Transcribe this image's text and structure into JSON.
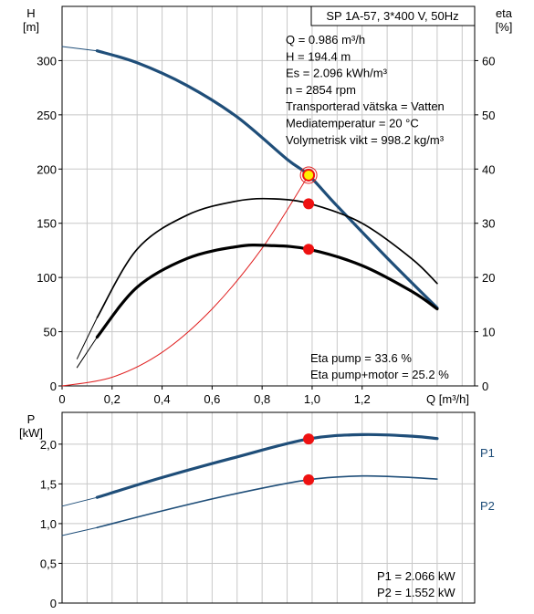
{
  "colors": {
    "curve_blue": "#1f4e79",
    "curve_black": "#000000",
    "system_red": "#e02020",
    "marker_red": "#ee1111",
    "op_marker_yellow": "#ffee00",
    "grid": "#c8c8c8"
  },
  "chart_data": [
    {
      "type": "line",
      "title": "SP 1A-57, 3*400 V, 50Hz",
      "xlabel": "Q [m³/h]",
      "ylabel": [
        "H",
        "[m]"
      ],
      "y2label": [
        "eta",
        "[%]"
      ],
      "xlim": [
        0,
        1.65
      ],
      "ylim": [
        0,
        350
      ],
      "y2lim": [
        0,
        70
      ],
      "x_ticks": [
        "0",
        "0,2",
        "0,4",
        "0,6",
        "0,8",
        "1,0",
        "1,2"
      ],
      "x_tick_values": [
        0,
        0.2,
        0.4,
        0.6,
        0.8,
        1.0,
        1.2
      ],
      "y_ticks": [
        "0",
        "50",
        "100",
        "150",
        "200",
        "250",
        "300"
      ],
      "y_tick_values": [
        0,
        50,
        100,
        150,
        200,
        250,
        300
      ],
      "y2_ticks": [
        "0",
        "10",
        "20",
        "30",
        "40",
        "50",
        "60"
      ],
      "y2_tick_values": [
        0,
        10,
        20,
        30,
        40,
        50,
        60
      ],
      "grid": true,
      "info_lines": [
        "Q = 0.986 m³/h",
        "H = 194.4 m",
        "Es = 2.096 kWh/m³",
        "n = 2854 rpm",
        "Transporterad vätska = Vatten",
        "Mediatemperatur = 20 °C",
        "Volymetrisk vikt = 998.2 kg/m³"
      ],
      "eta_lines": [
        "Eta pump = 33.6 %",
        "Eta pump+motor = 25.2 %"
      ],
      "series": [
        {
          "axis": "left",
          "style": "blue-thin",
          "x": [
            0,
            0.14
          ],
          "y": [
            313,
            309
          ]
        },
        {
          "axis": "left",
          "style": "blue-thick",
          "x": [
            0.14,
            0.3,
            0.5,
            0.7,
            0.9,
            0.986,
            1.1,
            1.3,
            1.5
          ],
          "y": [
            309,
            298,
            277,
            248,
            209,
            194.4,
            166,
            118,
            72
          ]
        },
        {
          "axis": "left",
          "style": "red-thin",
          "x": [
            0,
            0.2,
            0.4,
            0.6,
            0.8,
            0.986
          ],
          "y": [
            0,
            8,
            31,
            71,
            127,
            194.4
          ]
        },
        {
          "axis": "right",
          "style": "black-thin",
          "x": [
            0.06,
            0.14
          ],
          "y": [
            5,
            12.6
          ]
        },
        {
          "axis": "right",
          "style": "black-medium",
          "x": [
            0.14,
            0.3,
            0.5,
            0.7,
            0.85,
            1.0,
            1.2,
            1.4,
            1.5
          ],
          "y": [
            12.6,
            25.2,
            31.5,
            34.1,
            34.5,
            33.5,
            30,
            23.4,
            18.9
          ]
        },
        {
          "axis": "right",
          "style": "black-thin",
          "x": [
            0.06,
            0.14
          ],
          "y": [
            3.4,
            9
          ]
        },
        {
          "axis": "right",
          "style": "black-thick",
          "x": [
            0.14,
            0.3,
            0.5,
            0.7,
            0.83,
            0.986,
            1.2,
            1.4,
            1.5
          ],
          "y": [
            9,
            18.2,
            23.5,
            25.7,
            25.9,
            25.2,
            22.2,
            17.4,
            14.2
          ]
        }
      ],
      "markers": [
        {
          "axis": "left",
          "x": 0.986,
          "y": 194.4,
          "kind": "operating-point"
        },
        {
          "axis": "right",
          "x": 0.986,
          "y": 33.6,
          "kind": "point"
        },
        {
          "axis": "right",
          "x": 0.986,
          "y": 25.2,
          "kind": "point"
        }
      ]
    },
    {
      "type": "line",
      "ylabel": [
        "P",
        "[kW]"
      ],
      "xlim": [
        0,
        1.65
      ],
      "ylim": [
        0,
        2.4
      ],
      "y_ticks": [
        "0",
        "0,5",
        "1,0",
        "1,5",
        "2,0"
      ],
      "y_tick_values": [
        0,
        0.5,
        1.0,
        1.5,
        2.0
      ],
      "grid": true,
      "power_lines": [
        "P1 = 2.066 kW",
        "P2 = 1.552 kW"
      ],
      "series": [
        {
          "name": "P1",
          "style": "blue-thin",
          "x": [
            0,
            0.14
          ],
          "y": [
            1.22,
            1.33
          ]
        },
        {
          "name": "P1",
          "style": "blue-thick",
          "x": [
            0.14,
            0.4,
            0.7,
            0.986,
            1.2,
            1.4,
            1.5
          ],
          "y": [
            1.33,
            1.58,
            1.84,
            2.066,
            2.12,
            2.1,
            2.07
          ]
        },
        {
          "name": "P2",
          "style": "blue-thin",
          "x": [
            0,
            0.14
          ],
          "y": [
            0.85,
            0.95
          ]
        },
        {
          "name": "P2",
          "style": "blue-medium",
          "x": [
            0.14,
            0.4,
            0.7,
            0.986,
            1.2,
            1.4,
            1.5
          ],
          "y": [
            0.95,
            1.16,
            1.38,
            1.552,
            1.6,
            1.58,
            1.56
          ]
        }
      ],
      "markers": [
        {
          "x": 0.986,
          "y": 2.066,
          "kind": "point"
        },
        {
          "x": 0.986,
          "y": 1.552,
          "kind": "point"
        }
      ]
    }
  ]
}
